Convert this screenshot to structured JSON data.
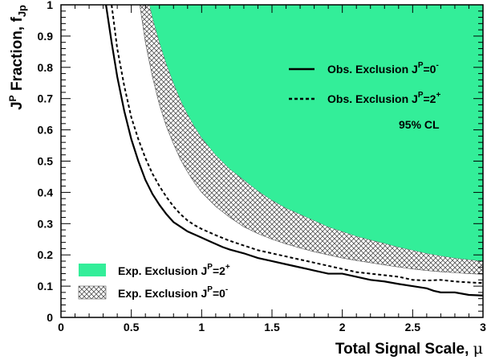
{
  "chart_data": {
    "type": "area",
    "xlabel": "Total Signal Scale, μ",
    "ylabel": "J^P Fraction, f_Jp",
    "xlim": [
      0,
      3
    ],
    "ylim": [
      0,
      1
    ],
    "xticks": [
      0,
      0.5,
      1,
      1.5,
      2,
      2.5,
      3
    ],
    "xtick_labels": [
      "0",
      "0.5",
      "1",
      "1.5",
      "2",
      "2.5",
      "3"
    ],
    "yticks": [
      0,
      0.1,
      0.2,
      0.3,
      0.4,
      0.5,
      0.6,
      0.7,
      0.8,
      0.9,
      1
    ],
    "ytick_labels": [
      "0",
      "0.1",
      "0.2",
      "0.3",
      "0.4",
      "0.5",
      "0.6",
      "0.7",
      "0.8",
      "0.9",
      "1"
    ],
    "annotation": "95% CL",
    "colors": {
      "exp_2plus": "#33ee99",
      "line": "#000000",
      "hatch": "#555555"
    },
    "series": [
      {
        "name": "Obs. Exclusion J^P=0^-",
        "style": "solid",
        "x": [
          0.32,
          0.33,
          0.36,
          0.4,
          0.45,
          0.5,
          0.55,
          0.6,
          0.65,
          0.7,
          0.75,
          0.8,
          0.85,
          0.9,
          0.95,
          1.0,
          1.05,
          1.1,
          1.15,
          1.2,
          1.3,
          1.4,
          1.5,
          1.6,
          1.7,
          1.8,
          1.9,
          2.0,
          2.1,
          2.2,
          2.3,
          2.4,
          2.5,
          2.6,
          2.65,
          2.7,
          2.8,
          2.9,
          3.0
        ],
        "y": [
          1.0,
          0.97,
          0.88,
          0.77,
          0.66,
          0.57,
          0.5,
          0.44,
          0.395,
          0.36,
          0.33,
          0.305,
          0.29,
          0.275,
          0.265,
          0.255,
          0.245,
          0.235,
          0.225,
          0.217,
          0.205,
          0.19,
          0.18,
          0.17,
          0.16,
          0.15,
          0.14,
          0.14,
          0.13,
          0.12,
          0.115,
          0.107,
          0.1,
          0.093,
          0.085,
          0.08,
          0.08,
          0.072,
          0.07
        ]
      },
      {
        "name": "Obs. Exclusion J^P=2^+",
        "style": "dashed",
        "x": [
          0.36,
          0.38,
          0.4,
          0.45,
          0.5,
          0.55,
          0.6,
          0.65,
          0.7,
          0.75,
          0.8,
          0.85,
          0.9,
          0.95,
          1.0,
          1.1,
          1.2,
          1.3,
          1.4,
          1.5,
          1.6,
          1.7,
          1.8,
          1.9,
          2.0,
          2.1,
          2.2,
          2.3,
          2.4,
          2.5,
          2.6,
          2.7,
          2.8,
          2.9,
          3.0
        ],
        "y": [
          1.0,
          0.93,
          0.86,
          0.74,
          0.64,
          0.57,
          0.51,
          0.46,
          0.42,
          0.385,
          0.355,
          0.33,
          0.31,
          0.295,
          0.283,
          0.263,
          0.245,
          0.23,
          0.215,
          0.205,
          0.195,
          0.185,
          0.175,
          0.165,
          0.155,
          0.145,
          0.14,
          0.135,
          0.13,
          0.12,
          0.118,
          0.12,
          0.115,
          0.112,
          0.11
        ]
      },
      {
        "name": "Exp. Exclusion J^P=2^+",
        "style": "filled",
        "x": [
          0.63,
          0.65,
          0.7,
          0.75,
          0.8,
          0.85,
          0.9,
          0.95,
          1.0,
          1.1,
          1.2,
          1.3,
          1.4,
          1.5,
          1.6,
          1.7,
          1.8,
          1.9,
          2.0,
          2.1,
          2.2,
          2.3,
          2.4,
          2.5,
          2.6,
          2.7,
          2.8,
          2.9,
          3.0
        ],
        "y": [
          1.0,
          0.96,
          0.88,
          0.81,
          0.75,
          0.695,
          0.65,
          0.61,
          0.575,
          0.52,
          0.475,
          0.44,
          0.405,
          0.375,
          0.35,
          0.33,
          0.31,
          0.29,
          0.275,
          0.26,
          0.248,
          0.237,
          0.225,
          0.215,
          0.205,
          0.197,
          0.19,
          0.185,
          0.18
        ]
      },
      {
        "name": "Exp. Exclusion J^P=0^-",
        "style": "hatched",
        "x": [
          0.56,
          0.6,
          0.65,
          0.7,
          0.75,
          0.8,
          0.85,
          0.9,
          0.95,
          1.0,
          1.1,
          1.2,
          1.3,
          1.4,
          1.5,
          1.6,
          1.7,
          1.8,
          1.9,
          2.0,
          2.1,
          2.2,
          2.3,
          2.4,
          2.5,
          2.6,
          2.7,
          2.8,
          2.9,
          3.0
        ],
        "y": [
          1.0,
          0.88,
          0.77,
          0.68,
          0.61,
          0.555,
          0.505,
          0.465,
          0.43,
          0.4,
          0.355,
          0.32,
          0.29,
          0.268,
          0.25,
          0.235,
          0.222,
          0.21,
          0.2,
          0.19,
          0.182,
          0.175,
          0.168,
          0.161,
          0.155,
          0.15,
          0.146,
          0.143,
          0.14,
          0.138
        ]
      }
    ],
    "legend": [
      {
        "label": "Obs. Exclusion J",
        "sup": "P",
        "tail": "=0",
        "tailsup": "-",
        "symbol": "solid",
        "placement": "top-right"
      },
      {
        "label": "Obs. Exclusion J",
        "sup": "P",
        "tail": "=2",
        "tailsup": "+",
        "symbol": "dashed",
        "placement": "top-right"
      },
      {
        "label": "Exp. Exclusion J",
        "sup": "P",
        "tail": "=2",
        "tailsup": "+",
        "symbol": "filled",
        "placement": "bottom-left"
      },
      {
        "label": "Exp. Exclusion J",
        "sup": "P",
        "tail": "=0",
        "tailsup": "-",
        "symbol": "hatched",
        "placement": "bottom-left"
      }
    ],
    "axis_title_parts": {
      "y_main": "J",
      "y_sup": "P",
      "y_mid": " Fraction, f",
      "y_sub": "Jp",
      "x_main": "Total Signal Scale, ",
      "x_sym": "μ"
    }
  }
}
